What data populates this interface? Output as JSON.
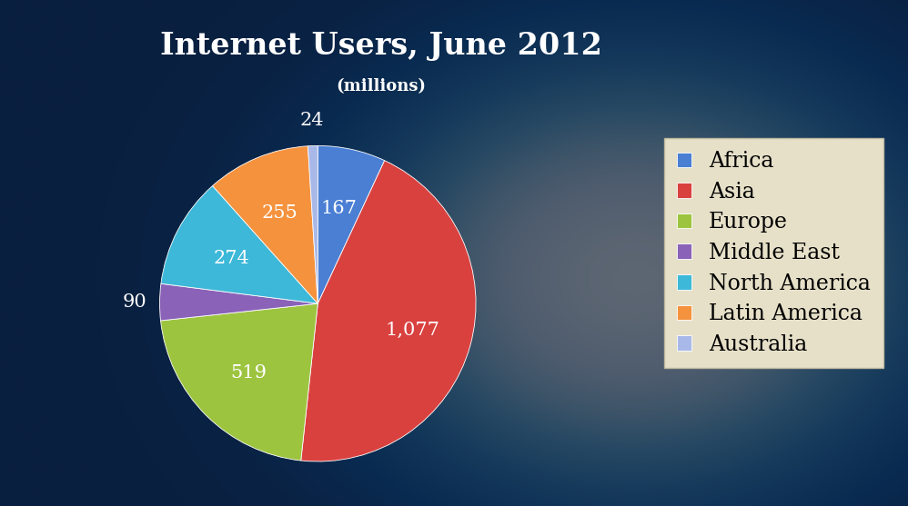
{
  "chart_data": {
    "type": "pie",
    "title": "Internet Users, June 2012",
    "subtitle": "(millions)",
    "categories": [
      "Africa",
      "Asia",
      "Europe",
      "Middle East",
      "North America",
      "Latin America",
      "Australia"
    ],
    "values": [
      167,
      1077,
      519,
      90,
      274,
      255,
      24
    ],
    "value_labels": [
      "167",
      "1,077",
      "519",
      "90",
      "274",
      "255",
      "24"
    ],
    "colors": [
      "#4a7fd4",
      "#d9413f",
      "#9dc43f",
      "#8a62b8",
      "#3db8d8",
      "#f5923e",
      "#a8b8e8"
    ],
    "data_labels": true,
    "legend": "right"
  }
}
